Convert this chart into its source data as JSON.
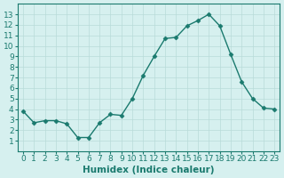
{
  "x": [
    0,
    1,
    2,
    3,
    4,
    5,
    6,
    7,
    8,
    9,
    10,
    11,
    12,
    13,
    14,
    15,
    16,
    17,
    18,
    19,
    20,
    21,
    22,
    23
  ],
  "y": [
    3.8,
    2.7,
    2.9,
    2.9,
    2.6,
    1.3,
    1.3,
    2.7,
    3.5,
    3.4,
    5.0,
    7.2,
    9.0,
    10.7,
    10.8,
    11.9,
    12.4,
    13.0,
    11.9,
    9.2,
    6.6,
    5.0,
    4.1,
    4.0
  ],
  "line_color": "#1a7a6e",
  "marker": "D",
  "marker_size": 2.5,
  "linewidth": 1.0,
  "bg_color": "#d6f0ef",
  "grid_color": "#b8dbd9",
  "xlabel": "Humidex (Indice chaleur)",
  "xlabel_fontsize": 7.5,
  "tick_fontsize": 6.5,
  "ylim": [
    0,
    14
  ],
  "xlim": [
    -0.5,
    23.5
  ],
  "yticks": [
    1,
    2,
    3,
    4,
    5,
    6,
    7,
    8,
    9,
    10,
    11,
    12,
    13
  ],
  "xticks": [
    0,
    1,
    2,
    3,
    4,
    5,
    6,
    7,
    8,
    9,
    10,
    11,
    12,
    13,
    14,
    15,
    16,
    17,
    18,
    19,
    20,
    21,
    22,
    23
  ]
}
